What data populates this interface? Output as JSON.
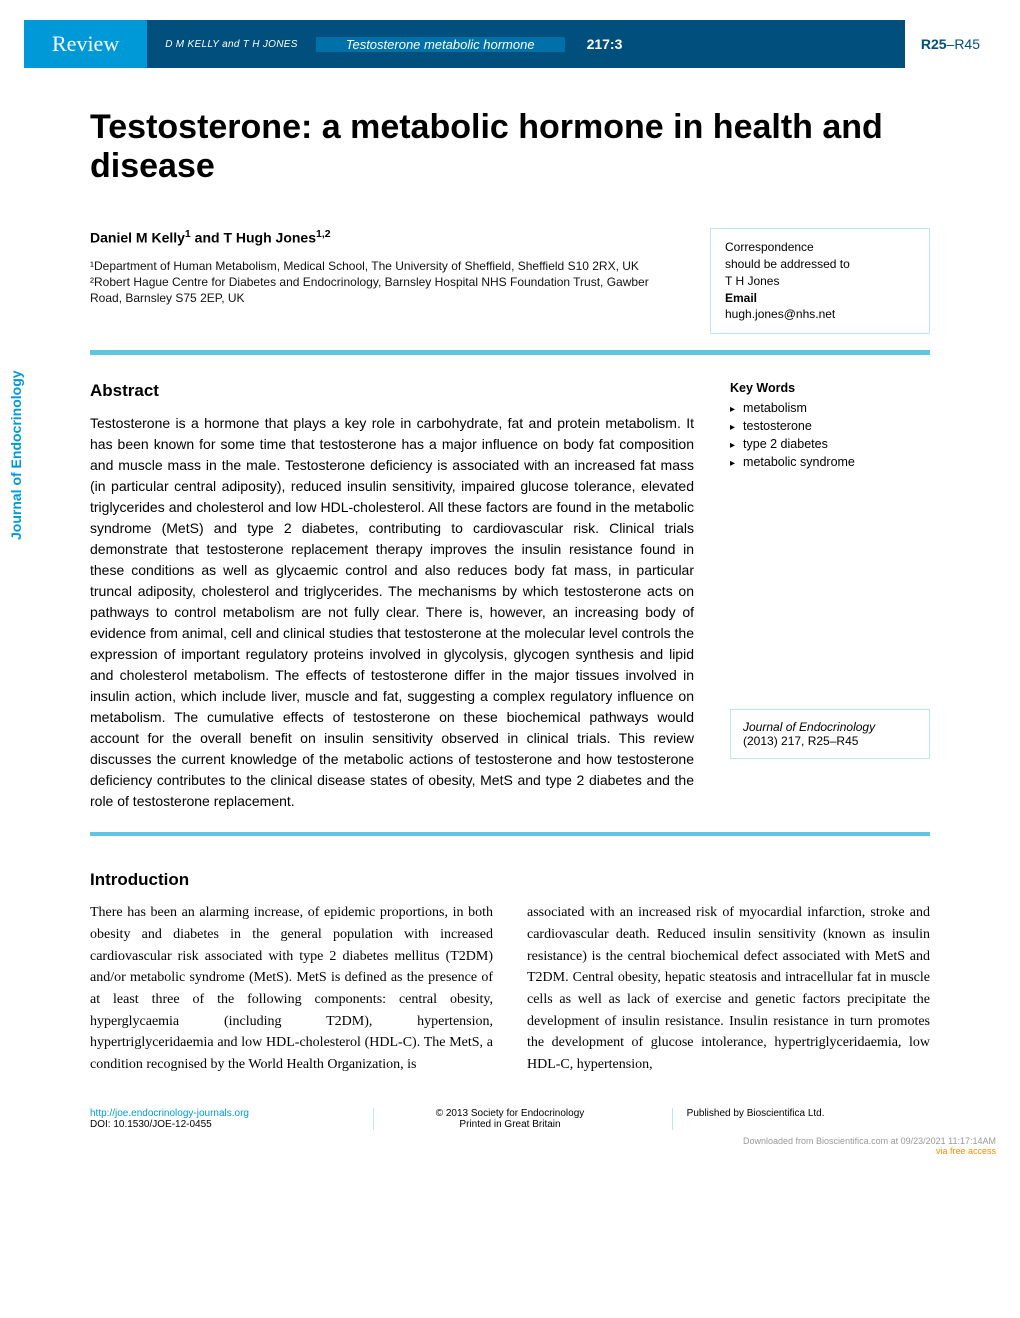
{
  "header": {
    "review_label": "Review",
    "authors_mini": "D M KELLY and T H JONES",
    "running_title": "Testosterone metabolic hormone",
    "volume_issue": "217:3",
    "page_range_bold": "R25",
    "page_range_rest": "–R45",
    "colors": {
      "review_bg": "#0099d8",
      "mid_bg": "#004f7c",
      "running_bg": "#0070a8"
    }
  },
  "side_journal": "Journal of Endocrinology",
  "title": "Testosterone: a metabolic hormone in health and disease",
  "authors": {
    "names_html": "Daniel M Kelly¹ and T Hugh Jones¹·²",
    "affiliations": "¹Department of Human Metabolism, Medical School, The University of Sheffield, Sheffield S10 2RX, UK  ²Robert Hague Centre for Diabetes and Endocrinology, Barnsley Hospital NHS Foundation Trust, Gawber Road, Barnsley S75 2EP, UK"
  },
  "correspondence": {
    "line1": "Correspondence",
    "line2": "should be addressed to",
    "name": "T H Jones",
    "email_label": "Email",
    "email": "hugh.jones@nhs.net"
  },
  "abstract": {
    "heading": "Abstract",
    "text": "Testosterone is a hormone that plays a key role in carbohydrate, fat and protein metabolism. It has been known for some time that testosterone has a major influence on body fat composition and muscle mass in the male. Testosterone deficiency is associated with an increased fat mass (in particular central adiposity), reduced insulin sensitivity, impaired glucose tolerance, elevated triglycerides and cholesterol and low HDL-cholesterol. All these factors are found in the metabolic syndrome (MetS) and type 2 diabetes, contributing to cardiovascular risk. Clinical trials demonstrate that testosterone replacement therapy improves the insulin resistance found in these conditions as well as glycaemic control and also reduces body fat mass, in particular truncal adiposity, cholesterol and triglycerides. The mechanisms by which testosterone acts on pathways to control metabolism are not fully clear. There is, however, an increasing body of evidence from animal, cell and clinical studies that testosterone at the molecular level controls the expression of important regulatory proteins involved in glycolysis, glycogen synthesis and lipid and cholesterol metabolism. The effects of testosterone differ in the major tissues involved in insulin action, which include liver, muscle and fat, suggesting a complex regulatory influence on metabolism. The cumulative effects of testosterone on these biochemical pathways would account for the overall benefit on insulin sensitivity observed in clinical trials. This review discusses the current knowledge of the metabolic actions of testosterone and how testosterone deficiency contributes to the clinical disease states of obesity, MetS and type 2 diabetes and the role of testosterone replacement."
  },
  "keywords": {
    "heading": "Key Words",
    "items": [
      "metabolism",
      "testosterone",
      "type 2 diabetes",
      "metabolic syndrome"
    ]
  },
  "citation": {
    "journal": "Journal of Endocrinology",
    "details": "(2013) 217, R25–R45"
  },
  "introduction": {
    "heading": "Introduction",
    "col1": "There has been an alarming increase, of epidemic proportions, in both obesity and diabetes in the general population with increased cardiovascular risk associated with type 2 diabetes mellitus (T2DM) and/or metabolic syndrome (MetS). MetS is defined as the presence of at least three of the following components: central obesity, hyperglycaemia (including T2DM), hypertension, hypertriglyceridaemia and low HDL-cholesterol (HDL-C). The MetS, a condition recognised by the World Health Organization, is",
    "col2": "associated with an increased risk of myocardial infarction, stroke and cardiovascular death. Reduced insulin sensitivity (known as insulin resistance) is the central biochemical defect associated with MetS and T2DM. Central obesity, hepatic steatosis and intracellular fat in muscle cells as well as lack of exercise and genetic factors precipitate the development of insulin resistance. Insulin resistance in turn promotes the development of glucose intolerance, hypertriglyceridaemia, low HDL-C, hypertension,"
  },
  "footer": {
    "url": "http://joe.endocrinology-journals.org",
    "doi": "DOI: 10.1530/JOE-12-0455",
    "copyright": "© 2013 Society for Endocrinology",
    "printed": "Printed in Great Britain",
    "published": "Published by Bioscientifica Ltd.",
    "download": "Downloaded from Bioscientifica.com at 09/23/2021 11:17:14AM",
    "via": "via free access"
  }
}
